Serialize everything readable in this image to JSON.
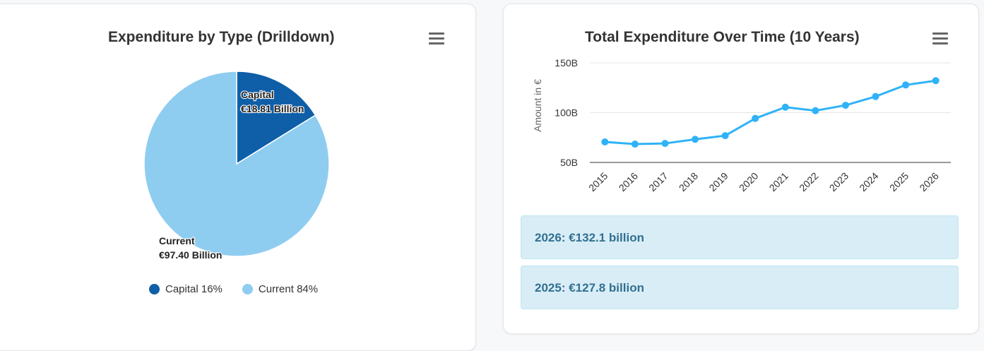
{
  "pie_card": {
    "title": "Expenditure by Type (Drilldown)",
    "menu_icon": "hamburger-menu-icon",
    "legend": [
      {
        "label": "Capital 16%",
        "color": "#0e5ea8"
      },
      {
        "label": "Current 84%",
        "color": "#8ecdf0"
      }
    ]
  },
  "line_card": {
    "title": "Total Expenditure Over Time (10 Years)",
    "menu_icon": "hamburger-menu-icon",
    "alerts": [
      {
        "text": "2026: €132.1 billion"
      },
      {
        "text": "2025: €127.8 billion"
      }
    ]
  },
  "chart_data": [
    {
      "type": "pie",
      "title": "Expenditure by Type (Drilldown)",
      "slices": [
        {
          "name": "Capital",
          "value": 18.81,
          "unit": "Billion",
          "label_line1": "Capital",
          "label_line2": "€18.81 Billion",
          "percent": 16,
          "color": "#0e5ea8"
        },
        {
          "name": "Current",
          "value": 97.4,
          "unit": "Billion",
          "label_line1": "Current",
          "label_line2": "€97.40 Billion",
          "percent": 84,
          "color": "#8ecdf0"
        }
      ],
      "legend_position": "bottom"
    },
    {
      "type": "line",
      "title": "Total Expenditure Over Time (10 Years)",
      "xlabel": "",
      "ylabel": "Amount in €",
      "categories": [
        "2015",
        "2016",
        "2017",
        "2018",
        "2019",
        "2020",
        "2021",
        "2022",
        "2023",
        "2024",
        "2025",
        "2026"
      ],
      "series": [
        {
          "name": "Total Expenditure",
          "unit": "B",
          "color": "#2fb2f7",
          "values": [
            70.6,
            68.4,
            69.1,
            73.2,
            76.9,
            94.2,
            105.5,
            102.0,
            107.4,
            116.2,
            127.8,
            132.1
          ]
        }
      ],
      "ylim": [
        50,
        150
      ],
      "yticks": [
        {
          "value": 50,
          "label": "50B"
        },
        {
          "value": 100,
          "label": "100B"
        },
        {
          "value": 150,
          "label": "150B"
        }
      ],
      "grid": true,
      "legend": "none"
    }
  ]
}
